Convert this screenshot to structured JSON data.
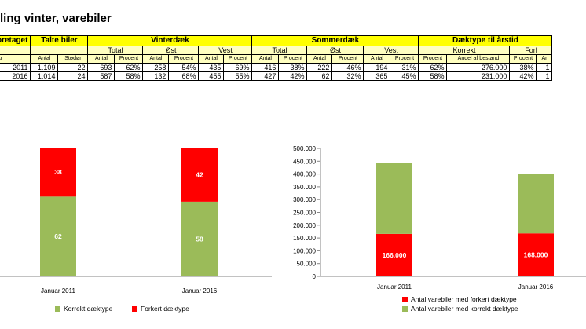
{
  "title": "ling vinter, varebiler",
  "table": {
    "header1": [
      "oretaget",
      "Talte biler",
      "Vinterdæk",
      "Sommerdæk",
      "Dæktype til årstid"
    ],
    "header2": [
      "",
      "",
      "Total",
      "Øst",
      "Vest",
      "Total",
      "Øst",
      "Vest",
      "Korrekt",
      "Forl"
    ],
    "header3": [
      "År",
      "Antal",
      "Stødør",
      "Antal",
      "Procent",
      "Antal",
      "Procent",
      "Antal",
      "Procent",
      "Antal",
      "Procent",
      "Antal",
      "Procent",
      "Antal",
      "Procent",
      "Procent",
      "Andel af bestand",
      "Procent",
      "Ar"
    ],
    "rows": [
      [
        "2011",
        "1.109",
        "22",
        "693",
        "62%",
        "258",
        "54%",
        "435",
        "69%",
        "416",
        "38%",
        "222",
        "46%",
        "194",
        "31%",
        "62%",
        "276.000",
        "38%",
        "1"
      ],
      [
        "2016",
        "1.014",
        "24",
        "587",
        "58%",
        "132",
        "68%",
        "455",
        "55%",
        "427",
        "42%",
        "62",
        "32%",
        "365",
        "45%",
        "58%",
        "231.000",
        "42%",
        "1"
      ]
    ]
  },
  "chart_data": [
    {
      "type": "bar",
      "stacked": true,
      "categories": [
        "Januar 2011",
        "Januar 2016"
      ],
      "series": [
        {
          "name": "Korrekt dæktype",
          "values": [
            62,
            58
          ],
          "color": "#9bbb59"
        },
        {
          "name": "Forkert dæktype",
          "values": [
            38,
            42
          ],
          "color": "#ff0000"
        }
      ],
      "ylim": [
        0,
        100
      ],
      "legend": "bottom"
    },
    {
      "type": "bar",
      "stacked": true,
      "categories": [
        "Januar 2011",
        "Januar 2016"
      ],
      "series": [
        {
          "name": "Antal varebiler med forkert dæktype",
          "values": [
            166000,
            168000
          ],
          "color": "#ff0000",
          "labels": [
            "166.000",
            "168.000"
          ]
        },
        {
          "name": "Antal varebiler med korrekt dæktype",
          "values": [
            276000,
            231000
          ],
          "color": "#9bbb59"
        }
      ],
      "ylim": [
        0,
        500000
      ],
      "yticks": [
        "0",
        "50.000",
        "100.000",
        "150.000",
        "200.000",
        "250.000",
        "300.000",
        "350.000",
        "400.000",
        "450.000",
        "500.000"
      ],
      "legend": "bottom"
    }
  ]
}
